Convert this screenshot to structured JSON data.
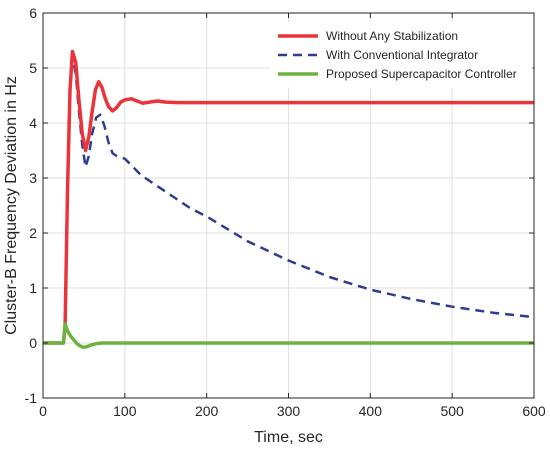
{
  "chart_data": {
    "type": "line",
    "title": "",
    "xlabel": "Time, sec",
    "ylabel": "Cluster-B Frequency Deviation in Hz",
    "xlim": [
      0,
      600
    ],
    "ylim": [
      -1,
      6
    ],
    "xticks": [
      0,
      100,
      200,
      300,
      400,
      500,
      600
    ],
    "yticks": [
      -1,
      0,
      1,
      2,
      3,
      4,
      5,
      6
    ],
    "grid": true,
    "legend_position": "top-right",
    "series": [
      {
        "name": "Without Any Stabilization",
        "color": "#e8343a",
        "style": "solid",
        "x": [
          0,
          25,
          27,
          30,
          33,
          36,
          40,
          44,
          48,
          52,
          56,
          60,
          64,
          68,
          72,
          76,
          80,
          85,
          90,
          95,
          100,
          108,
          115,
          122,
          130,
          140,
          150,
          165,
          180,
          200,
          250,
          300,
          400,
          500,
          600
        ],
        "y": [
          0,
          0,
          0.3,
          2.8,
          4.6,
          5.3,
          5.1,
          4.4,
          3.8,
          3.5,
          3.75,
          4.2,
          4.6,
          4.75,
          4.65,
          4.45,
          4.3,
          4.22,
          4.28,
          4.38,
          4.42,
          4.44,
          4.4,
          4.36,
          4.38,
          4.4,
          4.38,
          4.37,
          4.37,
          4.37,
          4.37,
          4.37,
          4.37,
          4.37,
          4.37
        ]
      },
      {
        "name": "With Conventional Integrator",
        "color": "#2e3d8f",
        "style": "dashed",
        "x": [
          0,
          25,
          27,
          30,
          33,
          36,
          40,
          44,
          48,
          52,
          56,
          60,
          65,
          70,
          75,
          80,
          85,
          90,
          95,
          100,
          110,
          120,
          140,
          160,
          180,
          200,
          250,
          300,
          350,
          400,
          450,
          500,
          550,
          600
        ],
        "y": [
          0,
          0,
          0.3,
          2.8,
          4.6,
          5.2,
          4.9,
          4.2,
          3.6,
          3.2,
          3.4,
          3.8,
          4.1,
          4.15,
          3.95,
          3.65,
          3.45,
          3.4,
          3.38,
          3.35,
          3.2,
          3.05,
          2.85,
          2.65,
          2.45,
          2.3,
          1.85,
          1.5,
          1.2,
          0.97,
          0.8,
          0.66,
          0.55,
          0.47
        ]
      },
      {
        "name": "Proposed Supercapacitor Controller",
        "color": "#6db33f",
        "style": "solid",
        "x": [
          0,
          25,
          27,
          30,
          34,
          38,
          42,
          46,
          50,
          55,
          60,
          66,
          72,
          80,
          100,
          150,
          200,
          300,
          400,
          500,
          600
        ],
        "y": [
          0,
          0,
          0.35,
          0.22,
          0.12,
          0.05,
          -0.02,
          -0.06,
          -0.08,
          -0.06,
          -0.03,
          -0.01,
          0.0,
          0.0,
          0.0,
          0.0,
          0.0,
          0.0,
          0.0,
          0.0,
          0.0
        ]
      }
    ]
  }
}
